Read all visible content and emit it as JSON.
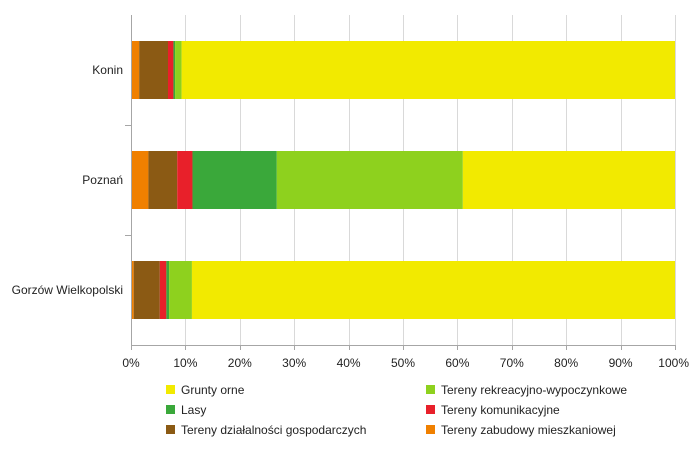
{
  "chart_data": {
    "type": "bar",
    "orientation": "horizontal",
    "stacked": "percent",
    "categories": [
      "Konin",
      "Poznań",
      "Gorzów Wielkopolski"
    ],
    "series": [
      {
        "name": "Tereny zabudowy mieszkaniowej",
        "color": "#f08000",
        "values": [
          1.5,
          3.2,
          0.5
        ]
      },
      {
        "name": "Tereny działalności gospodarczych",
        "color": "#8b5a14",
        "values": [
          5.3,
          5.3,
          4.8
        ]
      },
      {
        "name": "Tereny komunikacyjne",
        "color": "#e8202a",
        "values": [
          1.0,
          2.8,
          1.2
        ]
      },
      {
        "name": "Lasy",
        "color": "#3aa83a",
        "values": [
          0.3,
          15.5,
          0.5
        ]
      },
      {
        "name": "Tereny rekreacyjno-wypoczynkowe",
        "color": "#8ed11e",
        "values": [
          1.2,
          34.2,
          4.2
        ]
      },
      {
        "name": "Grunty orne",
        "color": "#f2ea00",
        "values": [
          90.7,
          39.0,
          88.8
        ]
      }
    ],
    "legend_order": [
      "Grunty orne",
      "Tereny rekreacyjno-wypoczynkowe",
      "Lasy",
      "Tereny komunikacyjne",
      "Tereny działalności gospodarczych",
      "Tereny zabudowy mieszkaniowej"
    ],
    "x_ticks": [
      "0%",
      "10%",
      "20%",
      "30%",
      "40%",
      "50%",
      "60%",
      "70%",
      "80%",
      "90%",
      "100%"
    ],
    "xlim": [
      0,
      100
    ],
    "grid": true,
    "legend_position": "bottom"
  }
}
